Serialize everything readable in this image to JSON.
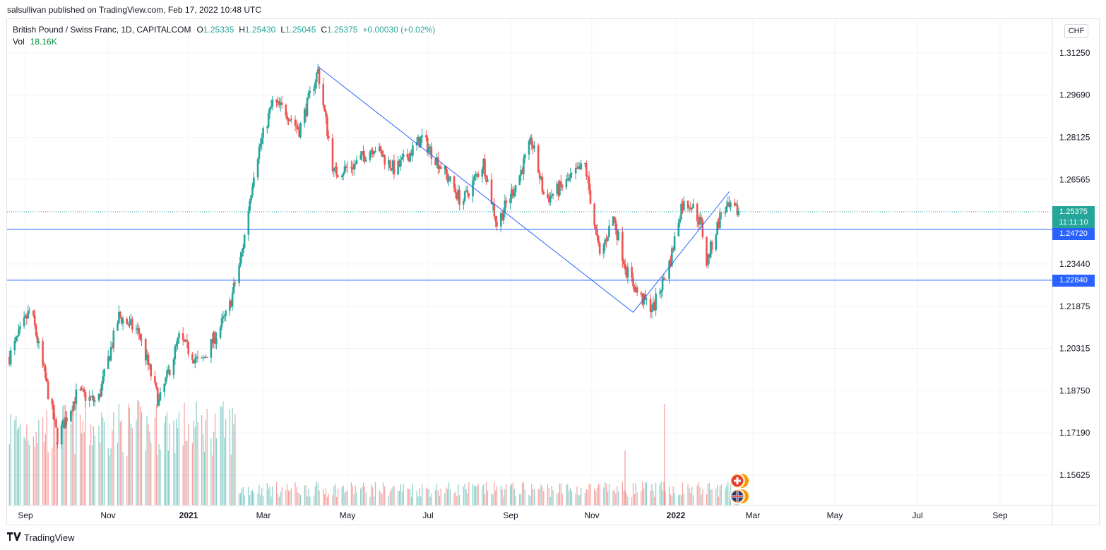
{
  "publisher_line": "salsullivan published on TradingView.com, Feb 17, 2022 10:48 UTC",
  "legend": {
    "symbol": "British Pound / Swiss Franc, 1D, CAPITALCOM",
    "open_label": "O",
    "open": "1.25335",
    "high_label": "H",
    "high": "1.25430",
    "low_label": "L",
    "low": "1.25045",
    "close_label": "C",
    "close": "1.25375",
    "change": "+0.00030 (+0.02%)",
    "vol_label": "Vol",
    "vol": "18.16K"
  },
  "currency_button": "CHF",
  "brand": "TradingView",
  "price_tags": {
    "last_price": "1.25375",
    "countdown": "11:11:10",
    "level_1": "1.24720",
    "level_2": "1.22840"
  },
  "colors": {
    "up": "#26a69a",
    "down": "#ef5350",
    "drawing": "#2962ff",
    "last_price_tag": "#26a69a",
    "level_tag": "#2962ff"
  },
  "icons": [
    "swiss-flag-icon",
    "uk-flag-icon",
    "tradingview-logo-icon"
  ],
  "chart_data": {
    "type": "candlestick",
    "symbol": "GBPCHF",
    "timeframe": "1D",
    "x_ticks": [
      "Sep",
      "Nov",
      "2021",
      "Mar",
      "May",
      "Jul",
      "Sep",
      "Nov",
      "2022",
      "Mar",
      "May",
      "Jul",
      "Sep"
    ],
    "y_ticks": [
      1.3125,
      1.2969,
      1.28125,
      1.26565,
      1.2344,
      1.21875,
      1.20315,
      1.1875,
      1.1719,
      1.15625
    ],
    "y_tick_labels": [
      "1.31250",
      "1.29690",
      "1.28125",
      "1.26565",
      "1.23440",
      "1.21875",
      "1.20315",
      "1.18750",
      "1.17190",
      "1.15625"
    ],
    "ylim": [
      1.1485,
      1.3155
    ],
    "last_price": 1.25375,
    "horizontal_levels": [
      1.2472,
      1.2284
    ],
    "trendlines": [
      {
        "from": [
          "2021-04-08",
          1.3075
        ],
        "to": [
          "2021-11-30",
          1.2165
        ]
      },
      {
        "from": [
          "2021-11-30",
          1.2165
        ],
        "to": [
          "2022-02-10",
          1.2612
        ]
      }
    ],
    "price_path": [
      [
        "2020-08-20",
        1.2
      ],
      [
        "2020-09-05",
        1.218
      ],
      [
        "2020-09-25",
        1.17
      ],
      [
        "2020-10-10",
        1.187
      ],
      [
        "2020-10-25",
        1.183
      ],
      [
        "2020-11-10",
        1.215
      ],
      [
        "2020-11-25",
        1.209
      ],
      [
        "2020-12-10",
        1.183
      ],
      [
        "2020-12-25",
        1.207
      ],
      [
        "2021-01-10",
        1.197
      ],
      [
        "2021-01-31",
        1.217
      ],
      [
        "2021-02-10",
        1.238
      ],
      [
        "2021-02-20",
        1.272
      ],
      [
        "2021-03-05",
        1.294
      ],
      [
        "2021-03-15",
        1.291
      ],
      [
        "2021-03-25",
        1.284
      ],
      [
        "2021-04-08",
        1.306
      ],
      [
        "2021-04-20",
        1.268
      ],
      [
        "2021-05-05",
        1.271
      ],
      [
        "2021-05-20",
        1.278
      ],
      [
        "2021-06-05",
        1.269
      ],
      [
        "2021-06-25",
        1.281
      ],
      [
        "2021-07-10",
        1.27
      ],
      [
        "2021-07-25",
        1.257
      ],
      [
        "2021-08-10",
        1.272
      ],
      [
        "2021-08-20",
        1.249
      ],
      [
        "2021-09-05",
        1.266
      ],
      [
        "2021-09-15",
        1.28
      ],
      [
        "2021-09-25",
        1.258
      ],
      [
        "2021-10-10",
        1.264
      ],
      [
        "2021-10-25",
        1.271
      ],
      [
        "2021-11-05",
        1.237
      ],
      [
        "2021-11-15",
        1.252
      ],
      [
        "2021-11-25",
        1.232
      ],
      [
        "2021-12-05",
        1.222
      ],
      [
        "2021-12-15",
        1.218
      ],
      [
        "2021-12-28",
        1.236
      ],
      [
        "2022-01-05",
        1.256
      ],
      [
        "2022-01-12",
        1.257
      ],
      [
        "2022-01-20",
        1.249
      ],
      [
        "2022-01-24",
        1.235
      ],
      [
        "2022-02-05",
        1.255
      ],
      [
        "2022-02-17",
        1.2538
      ]
    ],
    "volume_legend": "18.16K",
    "grid": true
  }
}
